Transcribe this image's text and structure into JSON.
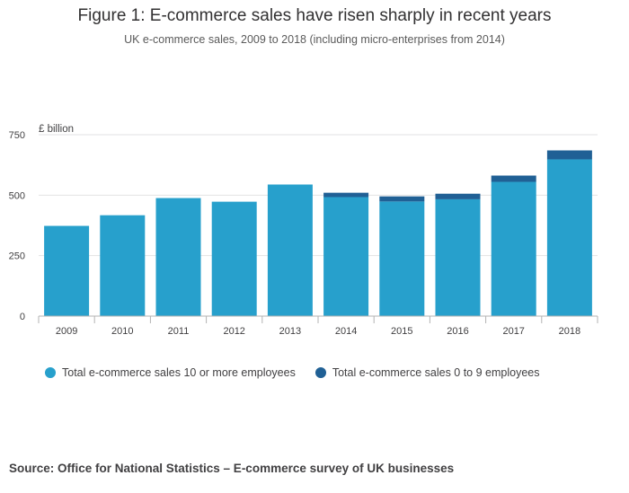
{
  "chart_data": {
    "type": "bar",
    "stacked": true,
    "title": "Figure 1: E-commerce sales have risen sharply in recent years",
    "subtitle": "UK e-commerce sales, 2009 to 2018 (including micro-enterprises from 2014)",
    "ylabel": "£ billion",
    "xlabel": "",
    "ylim": [
      0,
      750
    ],
    "yticks": [
      "0",
      "250",
      "500",
      "750"
    ],
    "grid": true,
    "legend_position": "bottom",
    "categories": [
      "2009",
      "2010",
      "2011",
      "2012",
      "2013",
      "2014",
      "2015",
      "2016",
      "2017",
      "2018"
    ],
    "series": [
      {
        "name": "Total e-commerce sales 10 or more employees",
        "color": "#27a0cc",
        "values": [
          373,
          417,
          488,
          473,
          544,
          492,
          474,
          483,
          555,
          648
        ]
      },
      {
        "name": "Total e-commerce sales 0 to 9 employees",
        "color": "#206095",
        "values": [
          0,
          0,
          0,
          0,
          0,
          18,
          21,
          23,
          26,
          37
        ]
      }
    ]
  },
  "source": "Source: Office for National Statistics – E-commerce survey of UK businesses"
}
